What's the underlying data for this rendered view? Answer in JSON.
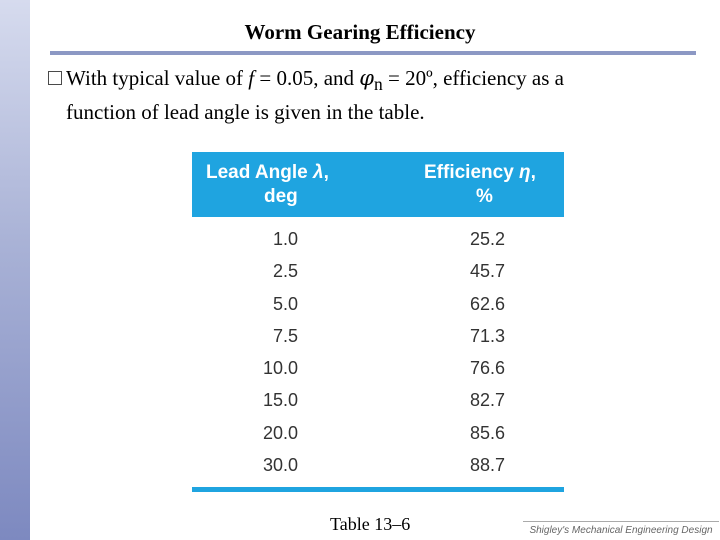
{
  "slide": {
    "title": "Worm Gearing Efficiency",
    "bullet": {
      "text_1": "With typical value of ",
      "f_symbol": "f",
      "text_2": " = 0.05, and ",
      "phi_symbol": "φ",
      "phi_sub": "n",
      "text_3": " = 20º, efficiency as a",
      "line_2": "function of lead angle is given in the table."
    }
  },
  "table": {
    "headers": [
      {
        "line1": "Lead Angle ",
        "symbol": "λ",
        "line1_end": ",",
        "line2": "deg"
      },
      {
        "line1": "Efficiency ",
        "symbol": "η",
        "line1_end": ",",
        "line2": "%"
      }
    ],
    "rows": [
      [
        "1.0",
        "25.2"
      ],
      [
        "2.5",
        "45.7"
      ],
      [
        "5.0",
        "62.6"
      ],
      [
        "7.5",
        "71.3"
      ],
      [
        "10.0",
        "76.6"
      ],
      [
        "15.0",
        "82.7"
      ],
      [
        "20.0",
        "85.6"
      ],
      [
        "30.0",
        "88.7"
      ]
    ],
    "caption": "Table 13–6"
  },
  "footer": {
    "text": "Shigley's Mechanical Engineering Design"
  },
  "colors": {
    "table_header": "#1fa4e0",
    "side_bar": "#7d89c0",
    "title_rule": "#8c98c4"
  }
}
